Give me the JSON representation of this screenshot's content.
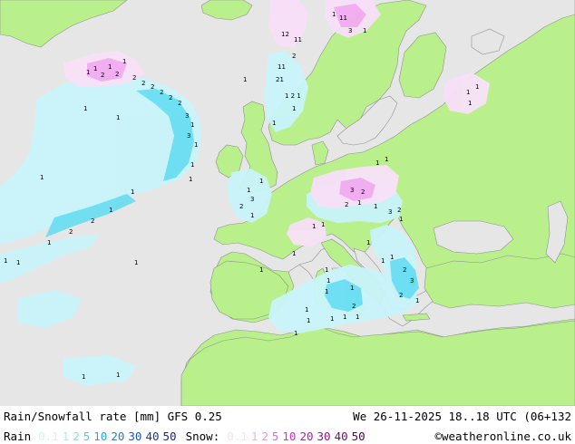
{
  "header": {
    "title": "Rain/Snowfall rate [mm] GFS 0.25",
    "valid_time": "We 26-11-2025 18..18 UTC (06+132"
  },
  "legend": {
    "rain_label": "Rain",
    "rain_values": [
      {
        "text": "0.1",
        "color": "#d2f4f8"
      },
      {
        "text": "1",
        "color": "#9ef0f8"
      },
      {
        "text": "2",
        "color": "#6ee6f6"
      },
      {
        "text": "5",
        "color": "#3ccdf0"
      },
      {
        "text": "10",
        "color": "#24a8e8"
      },
      {
        "text": "20",
        "color": "#1680d8"
      },
      {
        "text": "30",
        "color": "#1458b8"
      },
      {
        "text": "40",
        "color": "#143c98"
      },
      {
        "text": "50",
        "color": "#142878"
      }
    ],
    "snow_label": "Snow:",
    "snow_values": [
      {
        "text": "0.1",
        "color": "#f8e0f8"
      },
      {
        "text": "1",
        "color": "#f0b4f0"
      },
      {
        "text": "2",
        "color": "#e890e8"
      },
      {
        "text": "5",
        "color": "#e060e0"
      },
      {
        "text": "10",
        "color": "#d030d0"
      },
      {
        "text": "20",
        "color": "#b018b0"
      },
      {
        "text": "30",
        "color": "#901090"
      },
      {
        "text": "40",
        "color": "#700870"
      },
      {
        "text": "50",
        "color": "#500050"
      }
    ],
    "credit": "©weatheronline.co.uk"
  },
  "map": {
    "colors": {
      "sea": "#e6e6e6",
      "land": "#b9f08c",
      "border": "#909090",
      "rain_light": "#c8f4fa",
      "rain_medium": "#5fdcf2",
      "snow_light": "#f8e0f8",
      "snow_medium": "#f0a8ee"
    },
    "cell_labels": [
      "1",
      "2",
      "3",
      "11",
      "12",
      "21",
      "1 2 2",
      "1 2 1",
      "1 2 2 1",
      "1 2 1 1",
      "2 1 1",
      "2 2 1"
    ]
  }
}
